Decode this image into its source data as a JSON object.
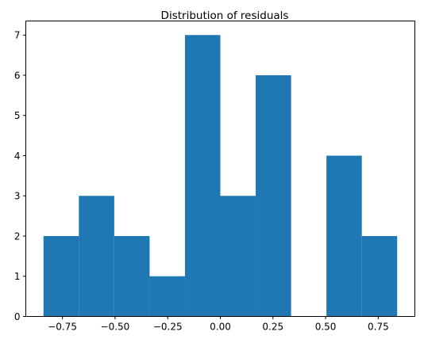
{
  "chart_data": {
    "type": "bar",
    "title": "Distribution of residuals",
    "xlabel": "",
    "ylabel": "",
    "bin_edges": [
      -0.84,
      -0.672,
      -0.504,
      -0.336,
      -0.168,
      0.0,
      0.168,
      0.336,
      0.504,
      0.672,
      0.84
    ],
    "values": [
      2,
      3,
      2,
      1,
      7,
      3,
      6,
      0,
      4,
      2
    ],
    "xlim": [
      -0.924,
      0.924
    ],
    "ylim": [
      0,
      7.35
    ],
    "xticks": [
      -0.75,
      -0.5,
      -0.25,
      0.0,
      0.25,
      0.5,
      0.75
    ],
    "xtick_labels": [
      "−0.75",
      "−0.50",
      "−0.25",
      "0.00",
      "0.25",
      "0.50",
      "0.75"
    ],
    "yticks": [
      0,
      1,
      2,
      3,
      4,
      5,
      6,
      7
    ],
    "ytick_labels": [
      "0",
      "1",
      "2",
      "3",
      "4",
      "5",
      "6",
      "7"
    ],
    "grid": false,
    "bar_color": "#1f77b4"
  }
}
